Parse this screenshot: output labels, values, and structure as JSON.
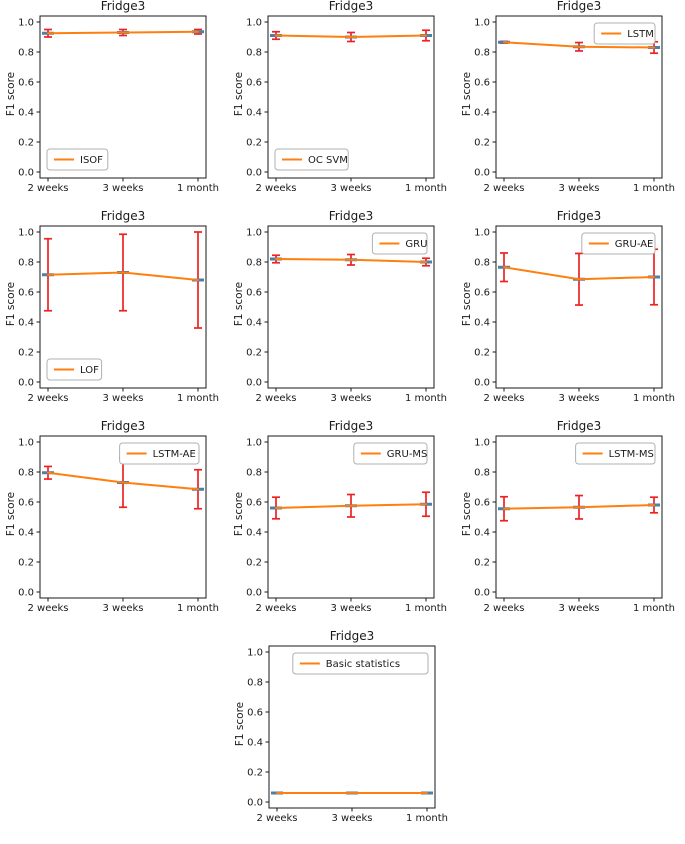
{
  "page": {
    "background": "#ffffff",
    "description_title": "Fridge3 F1 score comparison grid"
  },
  "colors": {
    "line": "#ff7f0e",
    "error_bar": "#ee2222",
    "marker": "#4d7fa8",
    "axis": "#1a1a1a",
    "legend_edge": "#b0b0b0",
    "legend_fill": "#ffffff",
    "text": "#1a1a1a"
  },
  "chart_data": [
    {
      "type": "line",
      "title": "Fridge3",
      "xlabel": "",
      "ylabel": "F1 score",
      "categories": [
        "2 weeks",
        "3 weeks",
        "1 month"
      ],
      "yticks": [
        "0.0",
        "0.2",
        "0.4",
        "0.6",
        "0.8",
        "1.0"
      ],
      "ylim": [
        -0.04,
        1.04
      ],
      "grid": false,
      "legend_pos": "lower left",
      "series": [
        {
          "name": "ISOF",
          "values": [
            0.925,
            0.93,
            0.935
          ],
          "yerr": [
            0.025,
            0.02,
            0.015
          ]
        }
      ]
    },
    {
      "type": "line",
      "title": "Fridge3",
      "xlabel": "",
      "ylabel": "F1 score",
      "categories": [
        "2 weeks",
        "3 weeks",
        "1 month"
      ],
      "yticks": [
        "0.0",
        "0.2",
        "0.4",
        "0.6",
        "0.8",
        "1.0"
      ],
      "ylim": [
        -0.04,
        1.04
      ],
      "grid": false,
      "legend_pos": "lower left",
      "series": [
        {
          "name": "OC SVM",
          "values": [
            0.91,
            0.9,
            0.91
          ],
          "yerr": [
            0.025,
            0.03,
            0.035
          ]
        }
      ]
    },
    {
      "type": "line",
      "title": "Fridge3",
      "xlabel": "",
      "ylabel": "F1 score",
      "categories": [
        "2 weeks",
        "3 weeks",
        "1 month"
      ],
      "yticks": [
        "0.0",
        "0.2",
        "0.4",
        "0.6",
        "0.8",
        "1.0"
      ],
      "ylim": [
        -0.04,
        1.04
      ],
      "grid": false,
      "legend_pos": "upper right",
      "series": [
        {
          "name": "LSTM",
          "values": [
            0.865,
            0.835,
            0.83
          ],
          "yerr": [
            0.006,
            0.028,
            0.038
          ]
        }
      ]
    },
    {
      "type": "line",
      "title": "Fridge3",
      "xlabel": "",
      "ylabel": "F1 score",
      "categories": [
        "2 weeks",
        "3 weeks",
        "1 month"
      ],
      "yticks": [
        "0.0",
        "0.2",
        "0.4",
        "0.6",
        "0.8",
        "1.0"
      ],
      "ylim": [
        -0.04,
        1.04
      ],
      "grid": false,
      "legend_pos": "lower left",
      "series": [
        {
          "name": "LOF",
          "values": [
            0.715,
            0.73,
            0.68
          ],
          "yerr": [
            0.24,
            0.255,
            0.32
          ]
        }
      ]
    },
    {
      "type": "line",
      "title": "Fridge3",
      "xlabel": "",
      "ylabel": "F1 score",
      "categories": [
        "2 weeks",
        "3 weeks",
        "1 month"
      ],
      "yticks": [
        "0.0",
        "0.2",
        "0.4",
        "0.6",
        "0.8",
        "1.0"
      ],
      "ylim": [
        -0.04,
        1.04
      ],
      "grid": false,
      "legend_pos": "upper right",
      "series": [
        {
          "name": "GRU",
          "values": [
            0.82,
            0.815,
            0.8
          ],
          "yerr": [
            0.025,
            0.035,
            0.025
          ]
        }
      ]
    },
    {
      "type": "line",
      "title": "Fridge3",
      "xlabel": "",
      "ylabel": "F1 score",
      "categories": [
        "2 weeks",
        "3 weeks",
        "1 month"
      ],
      "yticks": [
        "0.0",
        "0.2",
        "0.4",
        "0.6",
        "0.8",
        "1.0"
      ],
      "ylim": [
        -0.04,
        1.04
      ],
      "grid": false,
      "legend_pos": "upper right",
      "series": [
        {
          "name": "GRU-AE",
          "values": [
            0.765,
            0.685,
            0.7
          ],
          "yerr": [
            0.095,
            0.172,
            0.185
          ]
        }
      ]
    },
    {
      "type": "line",
      "title": "Fridge3",
      "xlabel": "",
      "ylabel": "F1 score",
      "categories": [
        "2 weeks",
        "3 weeks",
        "1 month"
      ],
      "yticks": [
        "0.0",
        "0.2",
        "0.4",
        "0.6",
        "0.8",
        "1.0"
      ],
      "ylim": [
        -0.04,
        1.04
      ],
      "grid": false,
      "legend_pos": "upper right",
      "series": [
        {
          "name": "LSTM-AE",
          "values": [
            0.795,
            0.73,
            0.685
          ],
          "yerr": [
            0.042,
            0.165,
            0.13
          ]
        }
      ]
    },
    {
      "type": "line",
      "title": "Fridge3",
      "xlabel": "",
      "ylabel": "F1 score",
      "categories": [
        "2 weeks",
        "3 weeks",
        "1 month"
      ],
      "yticks": [
        "0.0",
        "0.2",
        "0.4",
        "0.6",
        "0.8",
        "1.0"
      ],
      "ylim": [
        -0.04,
        1.04
      ],
      "grid": false,
      "legend_pos": "upper right",
      "series": [
        {
          "name": "GRU-MS",
          "values": [
            0.56,
            0.575,
            0.585
          ],
          "yerr": [
            0.072,
            0.075,
            0.08
          ]
        }
      ]
    },
    {
      "type": "line",
      "title": "Fridge3",
      "xlabel": "",
      "ylabel": "F1 score",
      "categories": [
        "2 weeks",
        "3 weeks",
        "1 month"
      ],
      "yticks": [
        "0.0",
        "0.2",
        "0.4",
        "0.6",
        "0.8",
        "1.0"
      ],
      "ylim": [
        -0.04,
        1.04
      ],
      "grid": false,
      "legend_pos": "upper right",
      "series": [
        {
          "name": "LSTM-MS",
          "values": [
            0.555,
            0.565,
            0.58
          ],
          "yerr": [
            0.08,
            0.078,
            0.052
          ]
        }
      ]
    },
    {
      "type": "line",
      "title": "Fridge3",
      "xlabel": "",
      "ylabel": "F1 score",
      "categories": [
        "2 weeks",
        "3 weeks",
        "1 month"
      ],
      "yticks": [
        "0.0",
        "0.2",
        "0.4",
        "0.6",
        "0.8",
        "1.0"
      ],
      "ylim": [
        -0.04,
        1.04
      ],
      "grid": false,
      "legend_pos": "upper right",
      "series": [
        {
          "name": "Basic statistics",
          "values": [
            0.06,
            0.06,
            0.06
          ],
          "yerr": [
            0.004,
            0.004,
            0.004
          ]
        }
      ]
    }
  ]
}
